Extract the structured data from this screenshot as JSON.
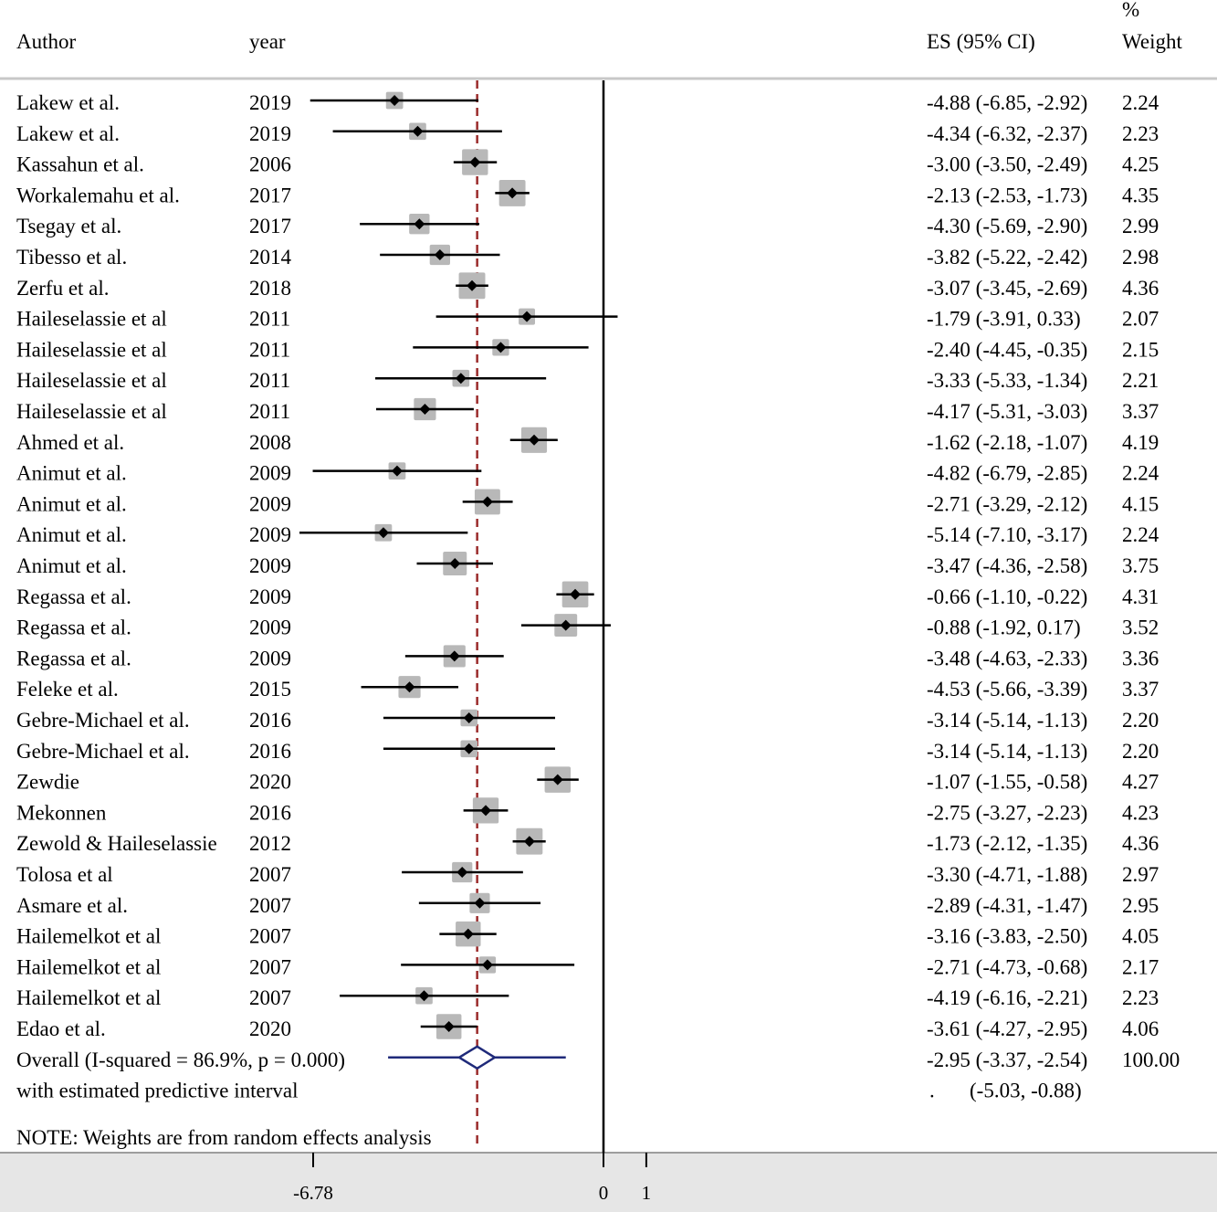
{
  "headers": {
    "author": "Author",
    "year": "year",
    "es": "ES (95% CI)",
    "weight_pct": "%",
    "weight": "Weight"
  },
  "chart_data": {
    "type": "forest",
    "x_ticks": [
      {
        "value": -6.78,
        "label": "-6.78"
      },
      {
        "value": 0,
        "label": "0"
      },
      {
        "value": 1,
        "label": "1"
      }
    ],
    "null_line": 0,
    "overall_line": -2.95,
    "studies": [
      {
        "author": "Lakew et al.",
        "year": "2019",
        "es": -4.88,
        "lo": -6.85,
        "hi": -2.92,
        "ci_text": "-4.88 (-6.85, -2.92)",
        "weight": "2.24"
      },
      {
        "author": "Lakew et al.",
        "year": "2019",
        "es": -4.34,
        "lo": -6.32,
        "hi": -2.37,
        "ci_text": "-4.34 (-6.32, -2.37)",
        "weight": "2.23"
      },
      {
        "author": "Kassahun et al.",
        "year": "2006",
        "es": -3.0,
        "lo": -3.5,
        "hi": -2.49,
        "ci_text": "-3.00 (-3.50, -2.49)",
        "weight": "4.25"
      },
      {
        "author": "Workalemahu et al.",
        "year": "2017",
        "es": -2.13,
        "lo": -2.53,
        "hi": -1.73,
        "ci_text": "-2.13 (-2.53, -1.73)",
        "weight": "4.35"
      },
      {
        "author": "Tsegay et al.",
        "year": "2017",
        "es": -4.3,
        "lo": -5.69,
        "hi": -2.9,
        "ci_text": "-4.30 (-5.69, -2.90)",
        "weight": "2.99"
      },
      {
        "author": "Tibesso et al.",
        "year": "2014",
        "es": -3.82,
        "lo": -5.22,
        "hi": -2.42,
        "ci_text": "-3.82 (-5.22, -2.42)",
        "weight": "2.98"
      },
      {
        "author": "Zerfu et al.",
        "year": "2018",
        "es": -3.07,
        "lo": -3.45,
        "hi": -2.69,
        "ci_text": "-3.07 (-3.45, -2.69)",
        "weight": "4.36"
      },
      {
        "author": "Haileselassie et al",
        "year": "2011",
        "es": -1.79,
        "lo": -3.91,
        "hi": 0.33,
        "ci_text": "-1.79 (-3.91, 0.33)",
        "weight": "2.07"
      },
      {
        "author": "Haileselassie et al",
        "year": "2011",
        "es": -2.4,
        "lo": -4.45,
        "hi": -0.35,
        "ci_text": "-2.40 (-4.45, -0.35)",
        "weight": "2.15"
      },
      {
        "author": "Haileselassie et al",
        "year": "2011",
        "es": -3.33,
        "lo": -5.33,
        "hi": -1.34,
        "ci_text": "-3.33 (-5.33, -1.34)",
        "weight": "2.21"
      },
      {
        "author": "Haileselassie et al",
        "year": "2011",
        "es": -4.17,
        "lo": -5.31,
        "hi": -3.03,
        "ci_text": "-4.17 (-5.31, -3.03)",
        "weight": "3.37"
      },
      {
        "author": "Ahmed et al.",
        "year": "2008",
        "es": -1.62,
        "lo": -2.18,
        "hi": -1.07,
        "ci_text": "-1.62 (-2.18, -1.07)",
        "weight": "4.19"
      },
      {
        "author": "Animut et al.",
        "year": "2009",
        "es": -4.82,
        "lo": -6.79,
        "hi": -2.85,
        "ci_text": "-4.82 (-6.79, -2.85)",
        "weight": "2.24"
      },
      {
        "author": "Animut et al.",
        "year": "2009",
        "es": -2.71,
        "lo": -3.29,
        "hi": -2.12,
        "ci_text": "-2.71 (-3.29, -2.12)",
        "weight": "4.15"
      },
      {
        "author": "Animut et al.",
        "year": "2009",
        "es": -5.14,
        "lo": -7.1,
        "hi": -3.17,
        "ci_text": "-5.14 (-7.10, -3.17)",
        "weight": "2.24"
      },
      {
        "author": "Animut et al.",
        "year": "2009",
        "es": -3.47,
        "lo": -4.36,
        "hi": -2.58,
        "ci_text": "-3.47 (-4.36, -2.58)",
        "weight": "3.75"
      },
      {
        "author": "Regassa et al.",
        "year": "2009",
        "es": -0.66,
        "lo": -1.1,
        "hi": -0.22,
        "ci_text": "-0.66 (-1.10, -0.22)",
        "weight": "4.31"
      },
      {
        "author": "Regassa et al.",
        "year": "2009",
        "es": -0.88,
        "lo": -1.92,
        "hi": 0.17,
        "ci_text": "-0.88 (-1.92, 0.17)",
        "weight": "3.52"
      },
      {
        "author": "Regassa et al.",
        "year": "2009",
        "es": -3.48,
        "lo": -4.63,
        "hi": -2.33,
        "ci_text": "-3.48 (-4.63, -2.33)",
        "weight": "3.36"
      },
      {
        "author": "Feleke et al.",
        "year": "2015",
        "es": -4.53,
        "lo": -5.66,
        "hi": -3.39,
        "ci_text": "-4.53 (-5.66, -3.39)",
        "weight": "3.37"
      },
      {
        "author": "Gebre-Michael et al.",
        "year": "2016",
        "es": -3.14,
        "lo": -5.14,
        "hi": -1.13,
        "ci_text": "-3.14 (-5.14, -1.13)",
        "weight": "2.20"
      },
      {
        "author": "Gebre-Michael et al.",
        "year": "2016",
        "es": -3.14,
        "lo": -5.14,
        "hi": -1.13,
        "ci_text": "-3.14 (-5.14, -1.13)",
        "weight": "2.20"
      },
      {
        "author": "Zewdie",
        "year": "2020",
        "es": -1.07,
        "lo": -1.55,
        "hi": -0.58,
        "ci_text": "-1.07 (-1.55, -0.58)",
        "weight": "4.27"
      },
      {
        "author": "Mekonnen",
        "year": "2016",
        "es": -2.75,
        "lo": -3.27,
        "hi": -2.23,
        "ci_text": "-2.75 (-3.27, -2.23)",
        "weight": "4.23"
      },
      {
        "author": "Zewold & Haileselassie",
        "year": "2012",
        "es": -1.73,
        "lo": -2.12,
        "hi": -1.35,
        "ci_text": "-1.73 (-2.12, -1.35)",
        "weight": "4.36"
      },
      {
        "author": "Tolosa et al",
        "year": "2007",
        "es": -3.3,
        "lo": -4.71,
        "hi": -1.88,
        "ci_text": "-3.30 (-4.71, -1.88)",
        "weight": "2.97"
      },
      {
        "author": "Asmare et al.",
        "year": "2007",
        "es": -2.89,
        "lo": -4.31,
        "hi": -1.47,
        "ci_text": "-2.89 (-4.31, -1.47)",
        "weight": "2.95"
      },
      {
        "author": "Hailemelkot et al",
        "year": "2007",
        "es": -3.16,
        "lo": -3.83,
        "hi": -2.5,
        "ci_text": "-3.16 (-3.83, -2.50)",
        "weight": "4.05"
      },
      {
        "author": "Hailemelkot et al",
        "year": "2007",
        "es": -2.71,
        "lo": -4.73,
        "hi": -0.68,
        "ci_text": "-2.71 (-4.73, -0.68)",
        "weight": "2.17"
      },
      {
        "author": "Hailemelkot et al",
        "year": "2007",
        "es": -4.19,
        "lo": -6.16,
        "hi": -2.21,
        "ci_text": "-4.19 (-6.16, -2.21)",
        "weight": "2.23"
      },
      {
        "author": "Edao et al.",
        "year": "2020",
        "es": -3.61,
        "lo": -4.27,
        "hi": -2.95,
        "ci_text": "-3.61 (-4.27, -2.95)",
        "weight": "4.06"
      }
    ],
    "overall": {
      "label": "Overall  (I-squared = 86.9%, p = 0.000)",
      "es": -2.95,
      "lo": -3.37,
      "hi": -2.54,
      "pi_lo": -5.03,
      "pi_hi": -0.88,
      "ci_text": "-2.95 (-3.37, -2.54)",
      "weight": "100.00"
    },
    "predictive": {
      "label": "with estimated predictive interval",
      "dot": ".",
      "text": "(-5.03, -0.88)"
    },
    "note": "NOTE: Weights are from random effects analysis",
    "colors": {
      "marker": "#000000",
      "weight_box": "#b8b8b8",
      "overall_line": "#9b2b2b",
      "diamond": "#1f2a7a",
      "axis_band": "#e6e6e6"
    }
  }
}
